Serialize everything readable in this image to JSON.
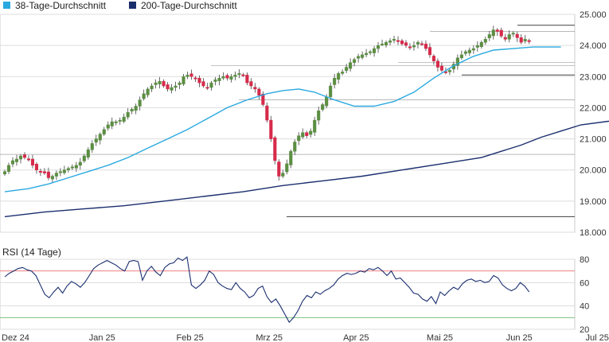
{
  "legend": [
    {
      "name": "38-Tage-Durchschnitt",
      "color": "#29a9e0"
    },
    {
      "name": "200-Tage-Durchschnitt",
      "color": "#1a2e6e"
    }
  ],
  "rsi_title": "RSI (14 Tage)",
  "colors": {
    "up": "#5b8e42",
    "down": "#d62a4a",
    "ma38": "#29a9e0",
    "ma200": "#1a2e6e",
    "rsi": "#1a2e6e",
    "rsi_high": "#f08080",
    "rsi_low": "#7ec07e",
    "grid": "#dddddd",
    "panel_bg": "#f7f7f7"
  },
  "chart_data": [
    {
      "type": "candlestick",
      "title": "",
      "y_ticks": [
        "25.000",
        "24.000",
        "23.000",
        "22.000",
        "21.000",
        "20.000",
        "19.000",
        "18.000"
      ],
      "ylim": [
        18000,
        25000
      ],
      "x_ticks": [
        "Dez 24",
        "Jan 25",
        "Feb 25",
        "Mrz 25",
        "Apr 25",
        "Mai 25",
        "Jun 25",
        "Jul 25"
      ],
      "x_tick_positions": [
        0,
        22,
        44,
        64,
        86,
        107,
        127,
        147
      ],
      "support_resistance_levels": [
        18500,
        20500,
        22250,
        23050,
        23350,
        23450,
        24450,
        24650
      ],
      "closes": [
        19950,
        20150,
        20300,
        20350,
        20450,
        20400,
        20350,
        20150,
        20000,
        19950,
        19900,
        19750,
        19800,
        19900,
        19950,
        20000,
        20050,
        20100,
        20150,
        20250,
        20450,
        20650,
        20850,
        21000,
        21150,
        21300,
        21450,
        21550,
        21550,
        21600,
        21700,
        21850,
        21950,
        22050,
        22250,
        22450,
        22600,
        22700,
        22800,
        22850,
        22700,
        22600,
        22650,
        22700,
        22800,
        23000,
        23050,
        23000,
        22950,
        22800,
        22700,
        22650,
        22800,
        22900,
        22950,
        23000,
        22950,
        23000,
        23050,
        23100,
        23050,
        22800,
        22700,
        22600,
        22400,
        22100,
        21600,
        21000,
        20300,
        19800,
        19900,
        20200,
        20600,
        20900,
        21100,
        21200,
        21100,
        21250,
        21600,
        21900,
        22100,
        22350,
        22700,
        22950,
        23100,
        23150,
        23300,
        23450,
        23550,
        23650,
        23700,
        23750,
        23800,
        23900,
        24000,
        24050,
        24100,
        24150,
        24200,
        24150,
        24050,
        24000,
        23950,
        24000,
        24100,
        24050,
        23900,
        23700,
        23500,
        23300,
        23200,
        23150,
        23200,
        23400,
        23600,
        23700,
        23800,
        23850,
        23900,
        24000,
        24100,
        24200,
        24350,
        24500,
        24450,
        24300,
        24200,
        24350,
        24400,
        24250,
        24100,
        24200,
        24150
      ],
      "series": [
        {
          "name": "38-Tage-Durchschnitt",
          "values": [
            19300,
            19400,
            19550,
            19750,
            19950,
            20150,
            20400,
            20700,
            21000,
            21300,
            21650,
            22000,
            22250,
            22450,
            22550,
            22600,
            22500,
            22250,
            22050,
            22050,
            22200,
            22500,
            22950,
            23350,
            23650,
            23850,
            23900,
            23950,
            23950
          ],
          "x_days": [
            0,
            6,
            11,
            16,
            21,
            26,
            31,
            36,
            41,
            46,
            51,
            56,
            61,
            66,
            70,
            74,
            78,
            83,
            88,
            93,
            98,
            103,
            108,
            113,
            118,
            123,
            128,
            133,
            140
          ]
        },
        {
          "name": "200-Tage-Durchschnitt",
          "values": [
            18500,
            18650,
            18750,
            18850,
            19000,
            19150,
            19300,
            19500,
            19650,
            19800,
            20000,
            20200,
            20400,
            20600,
            20800,
            21050,
            21250,
            21450,
            21700
          ],
          "x_days": [
            0,
            10,
            20,
            30,
            40,
            50,
            60,
            70,
            80,
            90,
            100,
            110,
            120,
            125,
            130,
            135,
            140,
            145,
            160
          ]
        }
      ]
    },
    {
      "type": "line",
      "title": "RSI (14 Tage)",
      "y_ticks": [
        "80",
        "60",
        "40",
        "20"
      ],
      "ylim": [
        20,
        80
      ],
      "reference_lines": [
        70,
        30
      ],
      "series": [
        {
          "name": "RSI",
          "values": [
            65,
            68,
            70,
            72,
            73,
            71,
            70,
            66,
            58,
            50,
            47,
            52,
            56,
            51,
            57,
            61,
            59,
            56,
            60,
            66,
            72,
            75,
            77,
            79,
            77,
            75,
            72,
            70,
            78,
            79,
            78,
            62,
            70,
            74,
            69,
            66,
            73,
            76,
            77,
            81,
            79,
            82,
            58,
            55,
            58,
            62,
            70,
            67,
            60,
            57,
            55,
            54,
            60,
            55,
            52,
            47,
            49,
            55,
            57,
            48,
            43,
            46,
            40,
            33,
            26,
            30,
            36,
            44,
            49,
            47,
            52,
            50,
            53,
            55,
            58,
            63,
            66,
            68,
            67,
            68,
            70,
            69,
            72,
            71,
            73,
            70,
            66,
            70,
            63,
            64,
            60,
            56,
            51,
            50,
            46,
            44,
            48,
            42,
            52,
            49,
            53,
            56,
            54,
            59,
            62,
            63,
            61,
            62,
            60,
            61,
            66,
            64,
            58,
            55,
            53,
            55,
            60,
            57,
            52
          ]
        }
      ]
    }
  ]
}
